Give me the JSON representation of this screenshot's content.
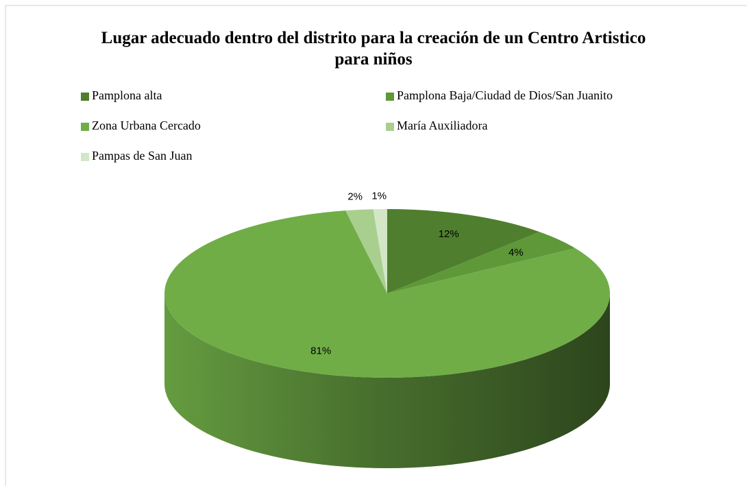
{
  "chart_data": {
    "type": "pie3d",
    "title": "Lugar adecuado dentro del distrito para la creación de un Centro Artistico para niños",
    "categories": [
      "Pamplona alta",
      "Pamplona Baja/Ciudad de Dios/San Juanito",
      "Zona Urbana Cercado",
      "María Auxiliadora",
      "Pampas de San Juan"
    ],
    "values": [
      12,
      4,
      81,
      2,
      1
    ],
    "value_labels": [
      "12%",
      "4%",
      "81%",
      "2%",
      "1%"
    ],
    "colors": [
      "#4f7f2e",
      "#5e9838",
      "#70ad47",
      "#a9cf8f",
      "#d3e6c6"
    ],
    "legend": "top"
  }
}
